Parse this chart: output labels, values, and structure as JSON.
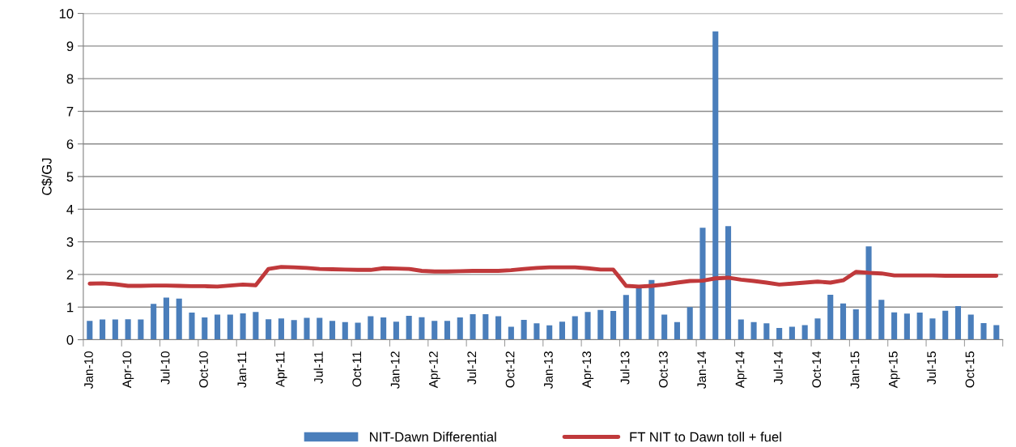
{
  "chart_data": {
    "type": "bar",
    "ylabel": "C$/GJ",
    "categories": [
      "Jan-10",
      null,
      null,
      "Apr-10",
      null,
      null,
      "Jul-10",
      null,
      null,
      "Oct-10",
      null,
      null,
      "Jan-11",
      null,
      null,
      "Apr-11",
      null,
      null,
      "Jul-11",
      null,
      null,
      "Oct-11",
      null,
      null,
      "Jan-12",
      null,
      null,
      "Apr-12",
      null,
      null,
      "Jul-12",
      null,
      null,
      "Oct-12",
      null,
      null,
      "Jan-13",
      null,
      null,
      "Apr-13",
      null,
      null,
      "Jul-13",
      null,
      null,
      "Oct-13",
      null,
      null,
      "Jan-14",
      null,
      null,
      "Apr-14",
      null,
      null,
      "Jul-14",
      null,
      null,
      "Oct-14",
      null,
      null,
      "Jan-15",
      null,
      null,
      "Apr-15",
      null,
      null,
      "Jul-15",
      null,
      null,
      "Oct-15",
      null,
      null
    ],
    "series": [
      {
        "name": "NIT-Dawn Differential",
        "color": "#4a7ebb",
        "values": [
          0.58,
          0.62,
          0.62,
          0.63,
          0.62,
          1.1,
          1.29,
          1.26,
          0.83,
          0.68,
          0.77,
          0.77,
          0.81,
          0.85,
          0.63,
          0.65,
          0.6,
          0.67,
          0.67,
          0.58,
          0.54,
          0.52,
          0.72,
          0.68,
          0.55,
          0.73,
          0.69,
          0.58,
          0.58,
          0.68,
          0.78,
          0.78,
          0.72,
          0.4,
          0.61,
          0.5,
          0.44,
          0.55,
          0.72,
          0.85,
          0.91,
          0.88,
          1.37,
          1.58,
          1.83,
          0.77,
          0.54,
          1.0,
          3.43,
          9.45,
          3.48,
          0.62,
          0.54,
          0.5,
          0.36,
          0.4,
          0.45,
          0.65,
          1.38,
          1.11,
          0.93,
          2.86,
          1.22,
          0.84,
          0.8,
          0.83,
          0.65,
          0.89,
          1.03,
          0.77,
          0.51,
          0.45
        ]
      },
      {
        "name": "FT NIT to Dawn toll + fuel",
        "type": "line",
        "color": "#c0393b",
        "values": [
          1.72,
          1.73,
          1.7,
          1.65,
          1.65,
          1.66,
          1.66,
          1.65,
          1.64,
          1.64,
          1.63,
          1.66,
          1.69,
          1.67,
          2.17,
          2.23,
          2.22,
          2.2,
          2.17,
          2.16,
          2.15,
          2.14,
          2.14,
          2.19,
          2.18,
          2.17,
          2.11,
          2.09,
          2.09,
          2.1,
          2.11,
          2.11,
          2.11,
          2.13,
          2.17,
          2.2,
          2.22,
          2.22,
          2.22,
          2.19,
          2.15,
          2.15,
          1.65,
          1.63,
          1.65,
          1.69,
          1.75,
          1.8,
          1.81,
          1.88,
          1.9,
          1.84,
          1.8,
          1.75,
          1.69,
          1.72,
          1.75,
          1.78,
          1.75,
          1.82,
          2.08,
          2.05,
          2.03,
          1.97,
          1.97,
          1.97,
          1.97,
          1.96,
          1.96,
          1.96,
          1.96,
          1.96
        ]
      }
    ],
    "ylim": [
      0,
      10
    ],
    "yticks": [
      0,
      1,
      2,
      3,
      4,
      5,
      6,
      7,
      8,
      9,
      10
    ],
    "grid": "y",
    "legend": "bottom"
  }
}
